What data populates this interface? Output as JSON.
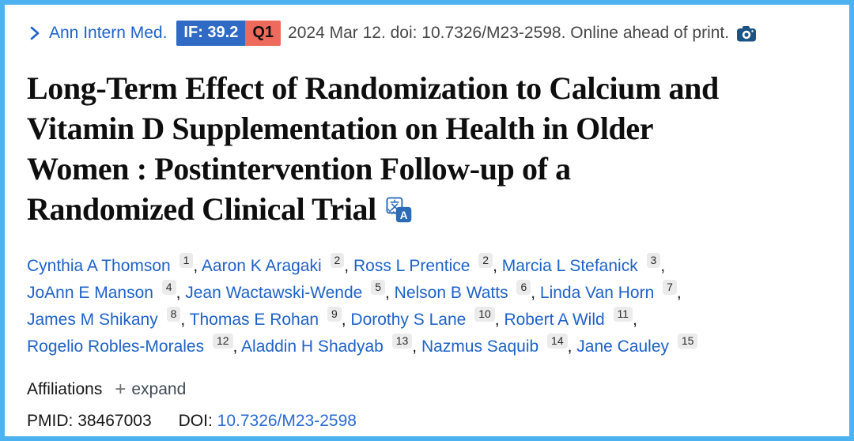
{
  "page": {
    "border_color": "#4db3f0",
    "background_color": "#ffffff"
  },
  "header": {
    "journal_link": "Ann Intern Med.",
    "impact_factor_badge": "IF: 39.2",
    "quartile_badge": "Q1",
    "citation": "2024 Mar 12. doi: 10.7326/M23-2598. Online ahead of print.",
    "impact_factor_bg": "#2f6ac4",
    "quartile_bg": "#ee6a5c",
    "camera_icon_color": "#1d5383"
  },
  "title": {
    "full": "Long-Term Effect of Randomization to Calcium and Vitamin D Supplementation on Health in Older Women : Postintervention Follow-up of a Randomized Clinical Trial",
    "lines": [
      "Long-Term Effect of Randomization to Calcium and",
      "Vitamin D Supplementation on Health in Older",
      "Women : Postintervention Follow-up of a",
      "Randomized Clinical Trial"
    ]
  },
  "authors": {
    "lines": [
      [
        {
          "name": "Cynthia A Thomson",
          "sup": "1"
        },
        {
          "name": "Aaron K Aragaki",
          "sup": "2"
        },
        {
          "name": "Ross L Prentice",
          "sup": "2"
        },
        {
          "name": "Marcia L Stefanick",
          "sup": "3"
        }
      ],
      [
        {
          "name": "JoAnn E Manson",
          "sup": "4"
        },
        {
          "name": "Jean Wactawski-Wende",
          "sup": "5"
        },
        {
          "name": "Nelson B Watts",
          "sup": "6"
        },
        {
          "name": "Linda Van Horn",
          "sup": "7"
        }
      ],
      [
        {
          "name": "James M Shikany",
          "sup": "8"
        },
        {
          "name": "Thomas E Rohan",
          "sup": "9"
        },
        {
          "name": "Dorothy S Lane",
          "sup": "10"
        },
        {
          "name": "Robert A Wild",
          "sup": "11"
        }
      ],
      [
        {
          "name": "Rogelio Robles-Morales",
          "sup": "12"
        },
        {
          "name": "Aladdin H Shadyab",
          "sup": "13"
        },
        {
          "name": "Nazmus Saquib",
          "sup": "14"
        },
        {
          "name": "Jane Cauley",
          "sup": "15"
        }
      ]
    ]
  },
  "affiliations": {
    "label": "Affiliations",
    "plus": "+",
    "expand_label": "expand"
  },
  "identifiers": {
    "pmid_label": "PMID:",
    "pmid_value": "38467003",
    "doi_label": "DOI:",
    "doi_value": "10.7326/M23-2598"
  },
  "colors": {
    "link_blue": "#1e62c8",
    "doi_link_blue": "#2a6bd4",
    "citation_gray": "#474747",
    "text_dark": "#161616",
    "chip_bg": "#ebebeb",
    "translate_icon_blue": "#2b6cb8"
  }
}
